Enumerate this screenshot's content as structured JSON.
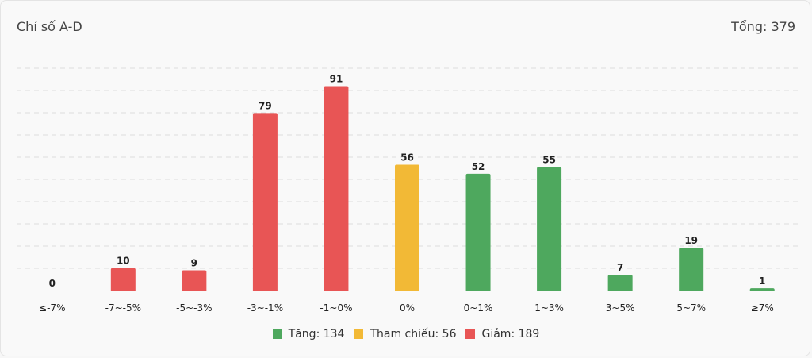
{
  "header": {
    "title": "Chỉ số A-D",
    "total_label": "Tổng:",
    "total_value": "379"
  },
  "colors": {
    "down": "#e85555",
    "ref": "#f2b936",
    "up": "#4ea85e"
  },
  "legend": [
    {
      "key": "up",
      "label": "Tăng: 134"
    },
    {
      "key": "ref",
      "label": "Tham chiếu: 56"
    },
    {
      "key": "down",
      "label": "Giảm: 189"
    }
  ],
  "chart_data": {
    "type": "bar",
    "title": "Chỉ số A-D",
    "categories": [
      "≤-7%",
      "-7~-5%",
      "-5~-3%",
      "-3~-1%",
      "-1~0%",
      "0%",
      "0~1%",
      "1~3%",
      "3~5%",
      "5~7%",
      "≥7%"
    ],
    "values": [
      0,
      10,
      9,
      79,
      91,
      56,
      52,
      55,
      7,
      19,
      1
    ],
    "groups": [
      "down",
      "down",
      "down",
      "down",
      "down",
      "ref",
      "up",
      "up",
      "up",
      "up",
      "up"
    ],
    "ylim": [
      0,
      100
    ],
    "grid": true,
    "legend_position": "bottom"
  }
}
